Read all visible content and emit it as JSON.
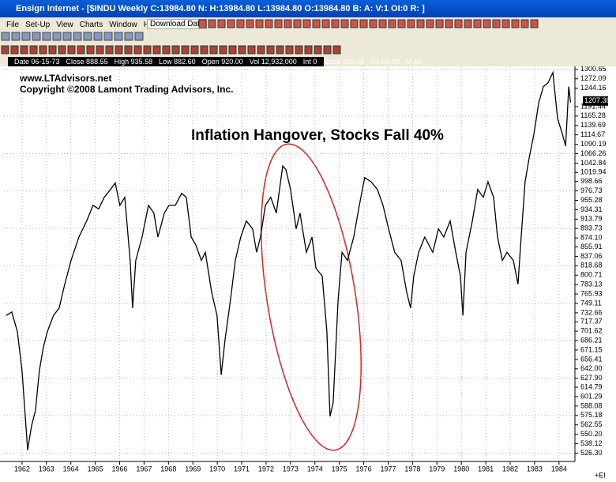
{
  "window": {
    "title": "Ensign Internet - [$INDU Weekly C:13984.80 N: H:13984.80 L:13984.80 O:13984.80 B: A: V:1 OI:0 R: ]",
    "menu": [
      "File",
      "Set-Up",
      "View",
      "Charts",
      "Window",
      "Help"
    ],
    "download_button": "Download Data"
  },
  "status_bar": [
    "Date 06-15-73",
    "Close 888.55",
    "High 935.58",
    "Low 882.60",
    "Open 920.00",
    "Vol 12,932,000",
    "Int 0",
    "Scale 815.06",
    "04-03-08",
    "M 60"
  ],
  "corner_label": "+EI",
  "chart_data": {
    "type": "line",
    "watermark": [
      "www.LTAdvisors.net",
      "Copyright ©2008 Lamont Trading Advisors, Inc."
    ],
    "annotation": "Inflation Hangover, Stocks Fall 40%",
    "x": [
      1961.35,
      1961.58,
      1961.81,
      1962.0,
      1962.23,
      1962.39,
      1962.55,
      1962.71,
      1962.87,
      1963.04,
      1963.29,
      1963.52,
      1963.75,
      1964.01,
      1964.33,
      1964.65,
      1964.91,
      1965.14,
      1965.37,
      1965.62,
      1965.82,
      1966.01,
      1966.21,
      1966.43,
      1966.53,
      1966.66,
      1966.92,
      1967.18,
      1967.4,
      1967.57,
      1967.83,
      1968.02,
      1968.28,
      1968.54,
      1968.73,
      1968.93,
      1969.12,
      1969.35,
      1969.51,
      1969.77,
      1969.99,
      1970.16,
      1970.32,
      1970.54,
      1970.74,
      1970.96,
      1971.19,
      1971.45,
      1971.61,
      1971.77,
      1971.97,
      1972.19,
      1972.42,
      1972.68,
      1972.81,
      1973.0,
      1973.23,
      1973.39,
      1973.65,
      1973.88,
      1974.04,
      1974.3,
      1974.49,
      1974.62,
      1974.75,
      1974.95,
      1975.11,
      1975.33,
      1975.59,
      1975.82,
      1976.04,
      1976.3,
      1976.56,
      1976.79,
      1977.02,
      1977.27,
      1977.53,
      1977.76,
      1977.92,
      1978.05,
      1978.25,
      1978.5,
      1978.83,
      1979.06,
      1979.28,
      1979.54,
      1979.77,
      1979.96,
      1980.06,
      1980.19,
      1980.45,
      1980.67,
      1980.9,
      1981.09,
      1981.32,
      1981.48,
      1981.68,
      1981.87,
      1982.13,
      1982.32,
      1982.45,
      1982.61,
      1982.78,
      1982.97,
      1983.17,
      1983.36,
      1983.55,
      1983.75,
      1983.94,
      1984.14,
      1984.27,
      1984.4,
      1984.47
    ],
    "series": [
      {
        "color": "#000000",
        "values": [
          728,
          734,
          701,
          639,
          530,
          561,
          582,
          639,
          675,
          701,
          728,
          741,
          784,
          829,
          876,
          910,
          944,
          936,
          962,
          980,
          995,
          944,
          962,
          829,
          741,
          829,
          876,
          944,
          927,
          876,
          927,
          944,
          944,
          971,
          962,
          876,
          860,
          829,
          845,
          769,
          728,
          633,
          688,
          755,
          829,
          876,
          910,
          893,
          845,
          876,
          944,
          962,
          927,
          1036,
          1027,
          980,
          893,
          927,
          845,
          876,
          814,
          799,
          701,
          574,
          593,
          755,
          845,
          829,
          876,
          944,
          1008,
          998,
          980,
          944,
          893,
          845,
          829,
          769,
          741,
          799,
          845,
          876,
          845,
          893,
          876,
          910,
          845,
          799,
          728,
          845,
          910,
          980,
          962,
          998,
          962,
          876,
          829,
          845,
          829,
          784,
          876,
          998,
          1056,
          1116,
          1203,
          1249,
          1260,
          1291,
          1159,
          1116,
          1086,
          1249,
          1203
        ]
      }
    ],
    "last_price": 1207.38,
    "log_scale": true,
    "grid": true,
    "xlim": [
      1961.26,
      1984.62
    ],
    "xticks": [
      1962,
      1963,
      1964,
      1965,
      1966,
      1967,
      1968,
      1969,
      1970,
      1971,
      1972,
      1973,
      1974,
      1975,
      1976,
      1977,
      1978,
      1979,
      1980,
      1981,
      1982,
      1983,
      1984
    ],
    "ylim": [
      518,
      1310
    ],
    "yticks": [
      1300.65,
      1272.09,
      1244.16,
      1191.44,
      1165.28,
      1139.69,
      1114.67,
      1090.19,
      1066.26,
      1042.84,
      1019.94,
      998.66,
      976.73,
      955.28,
      934.31,
      913.79,
      893.73,
      {
        "value": 874.1,
        "label": "874.10"
      },
      855.91,
      837.06,
      818.68,
      800.71,
      783.13,
      765.93,
      749.11,
      732.66,
      717.37,
      701.62,
      686.21,
      671.15,
      656.41,
      {
        "value": 642,
        "label": "642.00"
      },
      {
        "value": 627.9,
        "label": "627.90"
      },
      614.79,
      601.29,
      588.08,
      575.18,
      562.55,
      {
        "value": 550.2,
        "label": "550.20"
      },
      538.12,
      {
        "value": 526.3,
        "label": "526.30"
      }
    ]
  }
}
